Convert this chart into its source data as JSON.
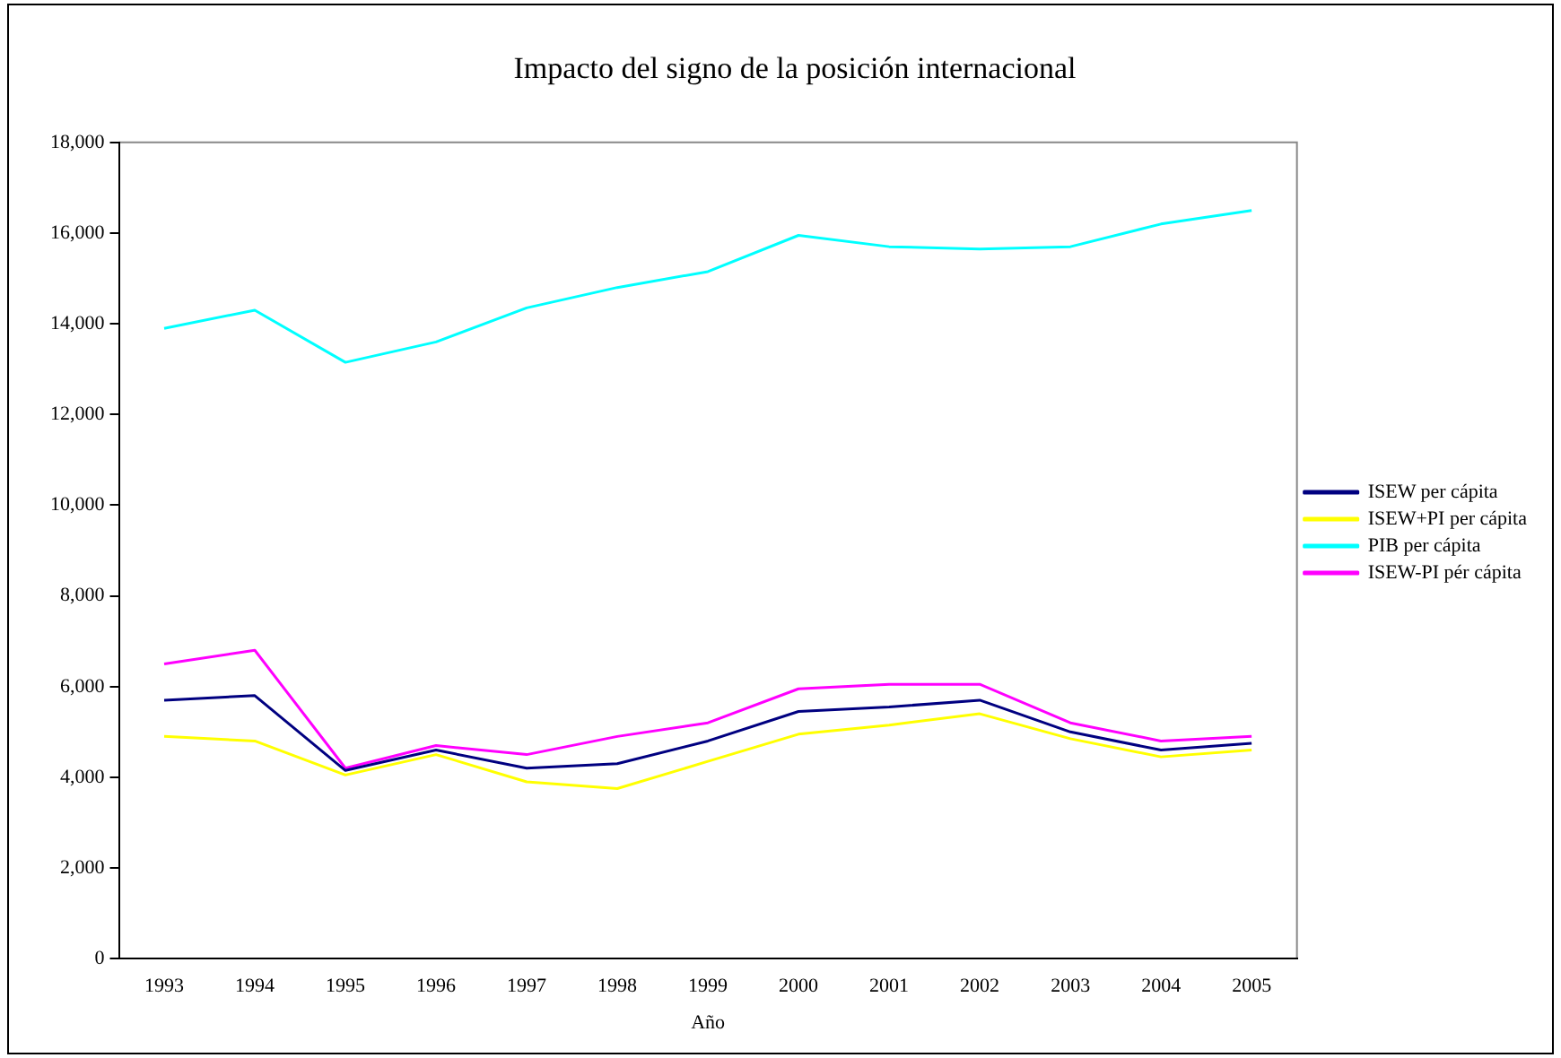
{
  "chart_data": {
    "type": "line",
    "title": "Impacto del signo de la posición internacional",
    "xlabel": "Año",
    "categories": [
      "1993",
      "1994",
      "1995",
      "1996",
      "1997",
      "1998",
      "1999",
      "2000",
      "2001",
      "2002",
      "2003",
      "2004",
      "2005"
    ],
    "series": [
      {
        "name": "ISEW per cápita",
        "color": "#000080",
        "values": [
          5700,
          5800,
          4150,
          4600,
          4200,
          4300,
          4800,
          5450,
          5550,
          5700,
          5000,
          4600,
          4750
        ]
      },
      {
        "name": "ISEW+PI per cápita",
        "color": "#ffff00",
        "values": [
          4900,
          4800,
          4050,
          4500,
          3900,
          3750,
          4350,
          4950,
          5150,
          5400,
          4850,
          4450,
          4600
        ]
      },
      {
        "name": "PIB per cápita",
        "color": "#00ffff",
        "values": [
          13900,
          14300,
          13150,
          13600,
          14350,
          14800,
          15150,
          15950,
          15700,
          15650,
          15700,
          16200,
          16500
        ]
      },
      {
        "name": "ISEW-PI pér cápita",
        "color": "#ff00ff",
        "values": [
          6500,
          6800,
          4200,
          4700,
          4500,
          4900,
          5200,
          5950,
          6050,
          6050,
          5200,
          4800,
          4900
        ]
      }
    ],
    "ylim": [
      0,
      18000
    ],
    "yticks": [
      {
        "value": 0,
        "label": "0"
      },
      {
        "value": 2000,
        "label": "2,000"
      },
      {
        "value": 4000,
        "label": "4,000"
      },
      {
        "value": 6000,
        "label": "6,000"
      },
      {
        "value": 8000,
        "label": "8,000"
      },
      {
        "value": 10000,
        "label": "10,000"
      },
      {
        "value": 12000,
        "label": "12,000"
      },
      {
        "value": 14000,
        "label": "14,000"
      },
      {
        "value": 16000,
        "label": "16,000"
      },
      {
        "value": 18000,
        "label": "18,000"
      }
    ],
    "grid": false,
    "legend": "right",
    "marker": "none",
    "line_style": "solid"
  }
}
